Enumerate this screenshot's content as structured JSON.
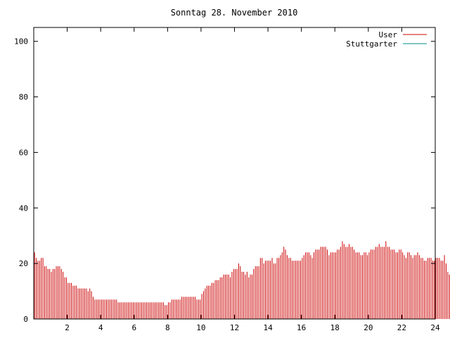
{
  "chart_data": {
    "type": "bar",
    "title": "Sonntag 28. November 2010",
    "xlabel": "",
    "ylabel": "",
    "xlim": [
      0,
      24
    ],
    "ylim": [
      0,
      105
    ],
    "x_ticks": [
      "2",
      "4",
      "6",
      "8",
      "10",
      "12",
      "14",
      "16",
      "18",
      "20",
      "22",
      "24"
    ],
    "y_ticks": [
      "0",
      "20",
      "40",
      "60",
      "80",
      "100"
    ],
    "grid": false,
    "legend_position": "top-right",
    "series": [
      {
        "name": "User",
        "color": "#cc0000",
        "x_step_hours": 0.1,
        "values": [
          24,
          22,
          21,
          21,
          22,
          22,
          19,
          19,
          18,
          18,
          17,
          18,
          18,
          19,
          19,
          19,
          18,
          17,
          15,
          15,
          13,
          13,
          13,
          12,
          12,
          12,
          11,
          11,
          11,
          11,
          11,
          11,
          10,
          11,
          10,
          8,
          7,
          7,
          7,
          7,
          7,
          7,
          7,
          7,
          7,
          7,
          7,
          7,
          7,
          7,
          6,
          6,
          6,
          6,
          6,
          6,
          6,
          6,
          6,
          6,
          6,
          6,
          6,
          6,
          6,
          6,
          6,
          6,
          6,
          6,
          6,
          6,
          6,
          6,
          6,
          6,
          6,
          6,
          5,
          5,
          6,
          6,
          7,
          7,
          7,
          7,
          7,
          7,
          8,
          8,
          8,
          8,
          8,
          8,
          8,
          8,
          8,
          7,
          7,
          7,
          9,
          10,
          11,
          12,
          12,
          12,
          13,
          13,
          14,
          14,
          14,
          15,
          15,
          16,
          16,
          16,
          16,
          15,
          17,
          18,
          18,
          18,
          20,
          19,
          17,
          17,
          16,
          17,
          15,
          16,
          16,
          18,
          19,
          19,
          19,
          22,
          22,
          20,
          21,
          21,
          21,
          21,
          22,
          20,
          20,
          22,
          22,
          23,
          24,
          26,
          25,
          23,
          22,
          22,
          21,
          21,
          21,
          21,
          21,
          21,
          22,
          23,
          24,
          24,
          24,
          23,
          22,
          24,
          25,
          25,
          25,
          26,
          26,
          26,
          26,
          25,
          23,
          24,
          24,
          24,
          24,
          25,
          25,
          26,
          28,
          27,
          26,
          26,
          27,
          26,
          26,
          25,
          24,
          24,
          24,
          23,
          23,
          24,
          24,
          23,
          24,
          25,
          25,
          25,
          26,
          26,
          27,
          26,
          26,
          26,
          28,
          26,
          26,
          25,
          25,
          25,
          24,
          24,
          25,
          25,
          24,
          23,
          22,
          24,
          24,
          23,
          22,
          23,
          23,
          24,
          23,
          22,
          22,
          21,
          21,
          22,
          22,
          22,
          21,
          21,
          22,
          22,
          22,
          21,
          21,
          23,
          20,
          17,
          16
        ]
      },
      {
        "name": "Stuttgarter",
        "color": "#008b8b",
        "values": []
      }
    ]
  }
}
